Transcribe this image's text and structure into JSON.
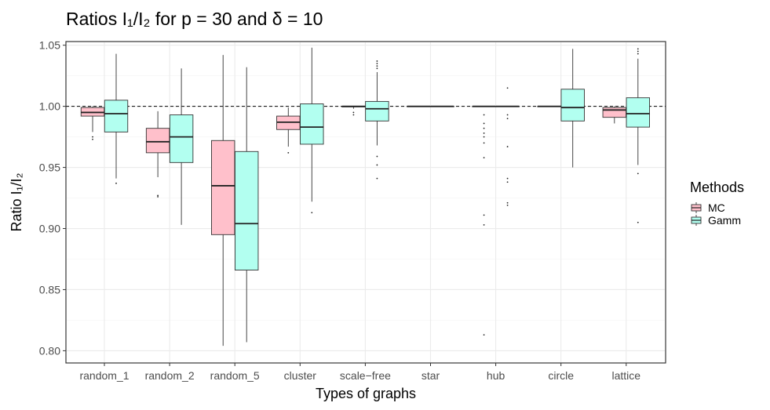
{
  "chart_data": {
    "type": "boxplot",
    "title": "Ratios I₁/I₂ for p = 30 and δ = 10",
    "xlabel": "Types of graphs",
    "ylabel": "Ratio I₁/I₂",
    "ylim": [
      0.79,
      1.053
    ],
    "yticks": [
      0.8,
      0.85,
      0.9,
      0.95,
      1.0,
      1.05
    ],
    "ytick_labels": [
      "0.80",
      "0.85",
      "0.90",
      "0.95",
      "1.00",
      "1.05"
    ],
    "reference_line": 1.0,
    "categories": [
      "random_1",
      "random_2",
      "random_5",
      "cluster",
      "scale−free",
      "star",
      "hub",
      "circle",
      "lattice"
    ],
    "legend": {
      "title": "Methods",
      "placement": "right",
      "entries": [
        {
          "name": "MC",
          "color": "#ffc0cb"
        },
        {
          "name": "Gamm",
          "color": "#b2fff0"
        }
      ]
    },
    "series": [
      {
        "name": "MC",
        "color": "#ffc0cb",
        "boxes": [
          {
            "category": "random_1",
            "whislo": 0.979,
            "q1": 0.992,
            "median": 0.995,
            "q3": 0.999,
            "whishi": 1.0,
            "outliers": [
              0.975,
              0.973
            ]
          },
          {
            "category": "random_2",
            "whislo": 0.942,
            "q1": 0.962,
            "median": 0.971,
            "q3": 0.982,
            "whishi": 0.996,
            "outliers": [
              0.927,
              0.926
            ]
          },
          {
            "category": "random_5",
            "whislo": 0.804,
            "q1": 0.895,
            "median": 0.935,
            "q3": 0.972,
            "whishi": 1.042,
            "outliers": []
          },
          {
            "category": "cluster",
            "whislo": 0.967,
            "q1": 0.981,
            "median": 0.987,
            "q3": 0.992,
            "whishi": 0.999,
            "outliers": [
              0.962
            ]
          },
          {
            "category": "scale−free",
            "whislo": 0.998,
            "q1": 0.9995,
            "median": 1.0,
            "q3": 1.0,
            "whishi": 1.0,
            "outliers": [
              0.995,
              0.993
            ]
          },
          {
            "category": "star",
            "whislo": 1.0,
            "q1": 1.0,
            "median": 1.0,
            "q3": 1.0,
            "whishi": 1.0,
            "outliers": []
          },
          {
            "category": "hub",
            "whislo": 1.0,
            "q1": 1.0,
            "median": 1.0,
            "q3": 1.0,
            "whishi": 1.0,
            "outliers": [
              0.993,
              0.986,
              0.982,
              0.978,
              0.975,
              0.97,
              0.958,
              0.911,
              0.903,
              0.813
            ]
          },
          {
            "category": "circle",
            "whislo": 1.0,
            "q1": 1.0,
            "median": 1.0,
            "q3": 1.0,
            "whishi": 1.0,
            "outliers": []
          },
          {
            "category": "lattice",
            "whislo": 0.986,
            "q1": 0.991,
            "median": 0.997,
            "q3": 0.999,
            "whishi": 1.0,
            "outliers": []
          }
        ]
      },
      {
        "name": "Gamm",
        "color": "#b2fff0",
        "boxes": [
          {
            "category": "random_1",
            "whislo": 0.941,
            "q1": 0.979,
            "median": 0.994,
            "q3": 1.005,
            "whishi": 1.043,
            "outliers": [
              0.937
            ]
          },
          {
            "category": "random_2",
            "whislo": 0.903,
            "q1": 0.954,
            "median": 0.975,
            "q3": 0.993,
            "whishi": 1.031,
            "outliers": []
          },
          {
            "category": "random_5",
            "whislo": 0.807,
            "q1": 0.866,
            "median": 0.904,
            "q3": 0.963,
            "whishi": 1.032,
            "outliers": []
          },
          {
            "category": "cluster",
            "whislo": 0.922,
            "q1": 0.969,
            "median": 0.983,
            "q3": 1.002,
            "whishi": 1.048,
            "outliers": [
              0.913
            ]
          },
          {
            "category": "scale−free",
            "whislo": 0.968,
            "q1": 0.988,
            "median": 0.998,
            "q3": 1.004,
            "whishi": 1.028,
            "outliers": [
              1.037,
              1.035,
              1.033,
              1.031,
              0.959,
              0.952,
              0.941
            ]
          },
          {
            "category": "star",
            "whislo": 1.0,
            "q1": 1.0,
            "median": 1.0,
            "q3": 1.0,
            "whishi": 1.0,
            "outliers": []
          },
          {
            "category": "hub",
            "whislo": 1.0,
            "q1": 1.0,
            "median": 1.0,
            "q3": 1.0,
            "whishi": 1.0,
            "outliers": [
              1.015,
              0.993,
              0.99,
              0.967,
              0.941,
              0.938,
              0.921,
              0.919
            ]
          },
          {
            "category": "circle",
            "whislo": 0.95,
            "q1": 0.988,
            "median": 0.999,
            "q3": 1.014,
            "whishi": 1.047,
            "outliers": []
          },
          {
            "category": "lattice",
            "whislo": 0.952,
            "q1": 0.983,
            "median": 0.994,
            "q3": 1.007,
            "whishi": 1.039,
            "outliers": [
              1.047,
              1.045,
              1.043,
              0.945,
              0.905
            ]
          }
        ]
      }
    ]
  }
}
